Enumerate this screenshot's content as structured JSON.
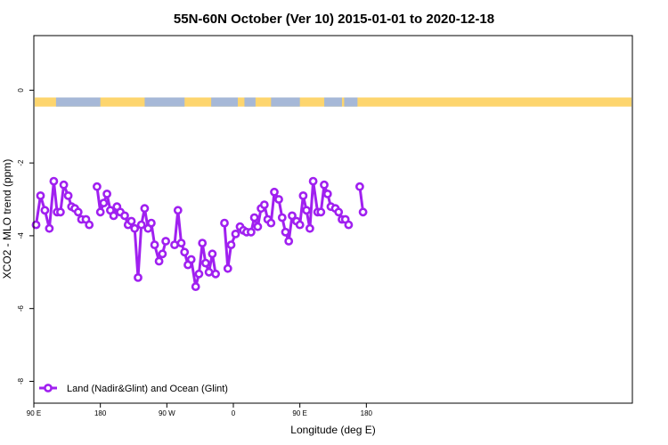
{
  "chart_data": {
    "type": "line",
    "title": "55N-60N October (Ver 10)   2015-01-01 to 2020-12-18",
    "xlabel": "Longitude (deg E)",
    "ylabel": "XCO2 - MLO trend (ppm)",
    "xlim": [
      -90,
      180
    ],
    "ylim": [
      -8.6,
      1.5
    ],
    "x_ticks": [
      {
        "value": -90,
        "label": "90 E"
      },
      {
        "value": -60,
        "label": "180"
      },
      {
        "value": -30,
        "label": "90 W"
      },
      {
        "value": 0,
        "label": "0"
      },
      {
        "value": 30,
        "label": "90 E"
      },
      {
        "value": 60,
        "label": "180"
      }
    ],
    "y_ticks": [
      {
        "value": 0,
        "label": "0"
      },
      {
        "value": -2,
        "label": "-2"
      },
      {
        "value": -4,
        "label": "-4"
      },
      {
        "value": -6,
        "label": "-6"
      },
      {
        "value": -8,
        "label": "-8"
      }
    ],
    "legend": {
      "position": "bottom-left",
      "label": "Land (Nadir&Glint) and Ocean (Glint)"
    },
    "grid": false,
    "land_ocean_band": {
      "y_range": [
        -0.45,
        -0.2
      ],
      "land_color": "#fdd56e",
      "ocean_color": "#a6b8d7"
    },
    "series": [
      {
        "name": "Land (Nadir&Glint) and Ocean (Glint)",
        "color": "#a020f0",
        "segments": [
          [
            [
              -89,
              -3.7
            ],
            [
              -87,
              -2.9
            ],
            [
              -85,
              -3.3
            ],
            [
              -83,
              -3.8
            ],
            [
              -81,
              -2.5
            ],
            [
              -79.5,
              -3.35
            ],
            [
              -78,
              -3.35
            ],
            [
              -76.5,
              -2.6
            ],
            [
              -74.5,
              -2.9
            ],
            [
              -73,
              -3.2
            ],
            [
              -71.5,
              -3.25
            ],
            [
              -70,
              -3.35
            ],
            [
              -68.5,
              -3.55
            ],
            [
              -66.5,
              -3.55
            ],
            [
              -65,
              -3.7
            ]
          ],
          [
            [
              -61.5,
              -2.65
            ],
            [
              -60,
              -3.35
            ],
            [
              -58.5,
              -3.1
            ],
            [
              -57,
              -2.85
            ],
            [
              -55.5,
              -3.3
            ],
            [
              -54,
              -3.45
            ],
            [
              -52.5,
              -3.2
            ],
            [
              -51,
              -3.35
            ],
            [
              -49,
              -3.45
            ],
            [
              -47.5,
              -3.7
            ],
            [
              -46,
              -3.6
            ],
            [
              -44.5,
              -3.8
            ],
            [
              -43,
              -5.15
            ],
            [
              -41.5,
              -3.7
            ],
            [
              -40,
              -3.25
            ],
            [
              -38.5,
              -3.8
            ],
            [
              -37,
              -3.65
            ],
            [
              -35.5,
              -4.25
            ],
            [
              -33.5,
              -4.7
            ],
            [
              -32,
              -4.5
            ],
            [
              -30.5,
              -4.15
            ]
          ],
          [
            [
              -26.5,
              -4.25
            ],
            [
              -25,
              -3.3
            ],
            [
              -23.5,
              -4.2
            ],
            [
              -22,
              -4.45
            ],
            [
              -20.5,
              -4.8
            ],
            [
              -19,
              -4.65
            ],
            [
              -17,
              -5.4
            ],
            [
              -15.5,
              -5.05
            ],
            [
              -14,
              -4.2
            ],
            [
              -12.5,
              -4.75
            ],
            [
              -11,
              -5.0
            ],
            [
              -9.5,
              -4.5
            ],
            [
              -8,
              -5.05
            ]
          ],
          [
            [
              -4,
              -3.65
            ],
            [
              -2.5,
              -4.9
            ],
            [
              -1,
              -4.25
            ],
            [
              1,
              -3.95
            ],
            [
              3,
              -3.75
            ],
            [
              4.5,
              -3.85
            ],
            [
              6,
              -3.9
            ],
            [
              8,
              -3.9
            ],
            [
              9.5,
              -3.5
            ],
            [
              11,
              -3.75
            ],
            [
              12.5,
              -3.25
            ],
            [
              14,
              -3.15
            ],
            [
              15.5,
              -3.55
            ],
            [
              17,
              -3.65
            ],
            [
              18.5,
              -2.8
            ],
            [
              20.5,
              -3.0
            ],
            [
              22,
              -3.5
            ],
            [
              23.5,
              -3.9
            ],
            [
              25,
              -4.15
            ],
            [
              26.5,
              -3.45
            ],
            [
              28.5,
              -3.6
            ],
            [
              30,
              -3.7
            ],
            [
              31.5,
              -2.9
            ],
            [
              33,
              -3.3
            ],
            [
              34.5,
              -3.8
            ],
            [
              36,
              -2.5
            ],
            [
              38,
              -3.35
            ],
            [
              39.5,
              -3.35
            ],
            [
              41,
              -2.6
            ],
            [
              42.5,
              -2.85
            ],
            [
              44,
              -3.2
            ],
            [
              46,
              -3.25
            ],
            [
              47.5,
              -3.35
            ],
            [
              49,
              -3.55
            ],
            [
              50.5,
              -3.55
            ],
            [
              52,
              -3.7
            ]
          ],
          [
            [
              57,
              -2.65
            ],
            [
              58.5,
              -3.35
            ]
          ]
        ]
      }
    ]
  }
}
